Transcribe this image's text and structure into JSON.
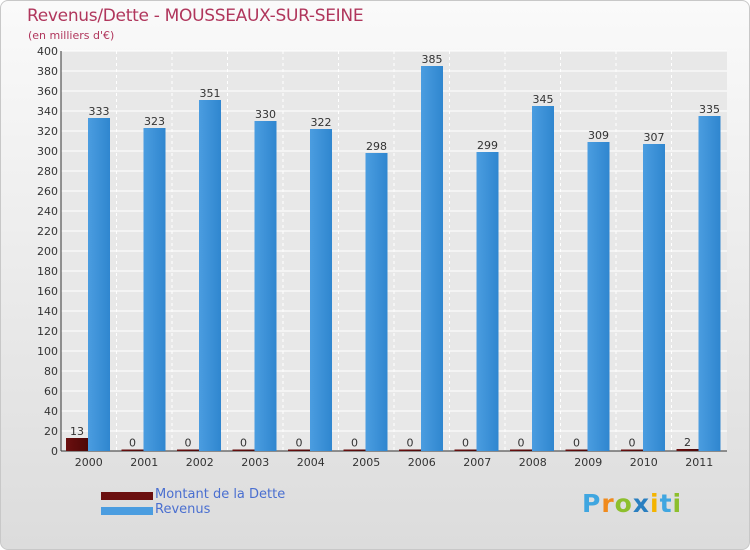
{
  "chart_data": {
    "type": "bar",
    "title": "Revenus/Dette - MOUSSEAUX-SUR-SEINE",
    "subtitle": "(en milliers d'€)",
    "xlabel": "",
    "ylabel": "",
    "ylim": [
      0,
      400
    ],
    "yticks": [
      0,
      20,
      40,
      60,
      80,
      100,
      120,
      140,
      160,
      180,
      200,
      220,
      240,
      260,
      280,
      300,
      320,
      340,
      360,
      380,
      400
    ],
    "grid": true,
    "legend_position": "bottom-left",
    "categories": [
      "2000",
      "2001",
      "2002",
      "2003",
      "2004",
      "2005",
      "2006",
      "2007",
      "2008",
      "2009",
      "2010",
      "2011"
    ],
    "series": [
      {
        "name": "Montant de la Dette",
        "color": "#6b0f0f",
        "values": [
          13,
          0,
          0,
          0,
          0,
          0,
          0,
          0,
          0,
          0,
          0,
          2
        ]
      },
      {
        "name": "Revenus",
        "color": "#4b9de0",
        "values": [
          333,
          323,
          351,
          330,
          322,
          298,
          385,
          299,
          345,
          309,
          307,
          335
        ]
      }
    ]
  },
  "logo": {
    "text": "Proxiti",
    "letter_colors": [
      "#3fa6e0",
      "#f08a1c",
      "#8dbf2c",
      "#2a7fc0",
      "#f4b400",
      "#3fa6e0",
      "#8dbf2c"
    ]
  }
}
